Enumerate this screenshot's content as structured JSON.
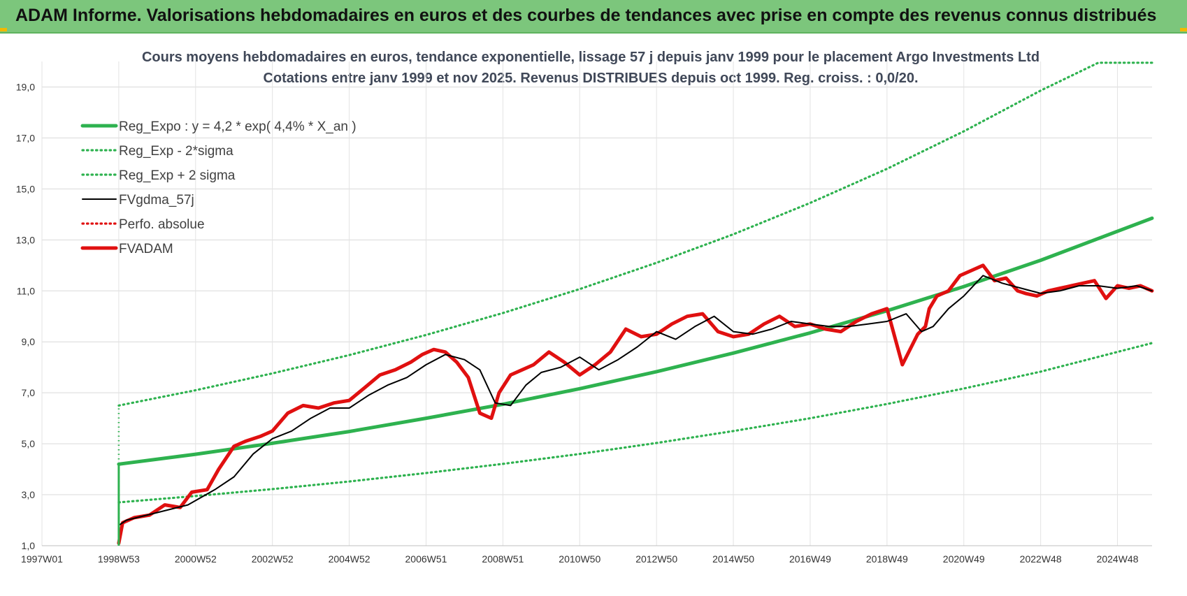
{
  "header": {
    "banner": "ADAM Informe. Valorisations hebdomadaires en euros et des courbes de tendances avec prise en compte des revenus connus distribués"
  },
  "chart_data": {
    "type": "line",
    "title": "Cours moyens hebdomadaires en euros, tendance exponentielle, lissage 57 j depuis janv 1999 pour le placement Argo Investments Ltd",
    "subtitle": "Cotations entre janv 1999 et nov 2025. Revenus DISTRIBUES depuis oct 1999. Reg. croiss. : 0,0/20.",
    "xlabel": "",
    "ylabel": "",
    "x_tick_labels": [
      "1997W01",
      "1998W53",
      "2000W52",
      "2002W52",
      "2004W52",
      "2006W51",
      "2008W51",
      "2010W50",
      "2012W50",
      "2014W50",
      "2016W49",
      "2018W49",
      "2020W49",
      "2022W48",
      "2024W48"
    ],
    "y_tick_labels": [
      "1,0",
      "3,0",
      "5,0",
      "7,0",
      "9,0",
      "11,0",
      "13,0",
      "15,0",
      "17,0",
      "19,0"
    ],
    "xlim": [
      1997.0,
      2025.9
    ],
    "ylim": [
      1.0,
      20.0
    ],
    "grid": true,
    "legend_position": "top-left",
    "series": [
      {
        "name": "Reg_Expo : y = 4,2 * exp( 4,4% *  X_an )",
        "color": "#2eb24f",
        "style": "solid-thick",
        "x": [
          1999.0,
          2001,
          2003,
          2005,
          2007,
          2009,
          2011,
          2013,
          2015,
          2017,
          2019,
          2021,
          2023,
          2025.9
        ],
        "y": [
          4.2,
          4.59,
          5.02,
          5.48,
          6.0,
          6.55,
          7.16,
          7.83,
          8.56,
          9.35,
          10.22,
          11.17,
          12.2,
          13.85
        ]
      },
      {
        "name": "Reg_Exp - 2*sigma",
        "color": "#2eb24f",
        "style": "dotted",
        "x": [
          1999.0,
          2001,
          2003,
          2005,
          2007,
          2009,
          2011,
          2013,
          2015,
          2017,
          2019,
          2021,
          2023,
          2025.9
        ],
        "y": [
          2.7,
          2.95,
          3.22,
          3.52,
          3.85,
          4.21,
          4.6,
          5.03,
          5.5,
          6.0,
          6.56,
          7.17,
          7.83,
          8.95
        ]
      },
      {
        "name": "Reg_Exp + 2 sigma",
        "color": "#2eb24f",
        "style": "dotted",
        "x": [
          1999.0,
          2001,
          2003,
          2005,
          2007,
          2009,
          2011,
          2013,
          2015,
          2017,
          2019,
          2021,
          2023,
          2024.5,
          2025.9
        ],
        "y": [
          6.5,
          7.1,
          7.76,
          8.48,
          9.27,
          10.13,
          11.07,
          12.1,
          13.22,
          14.45,
          15.79,
          17.26,
          18.86,
          19.95,
          19.95
        ]
      },
      {
        "name": "FVgdma_57j",
        "color": "#000000",
        "style": "solid",
        "x": [
          1999.0,
          1999.2,
          2000.0,
          2000.8,
          2001.5,
          2002.0,
          2002.5,
          2003.0,
          2003.5,
          2004.0,
          2004.5,
          2005.0,
          2005.5,
          2006.0,
          2006.5,
          2007.0,
          2007.5,
          2008.0,
          2008.4,
          2008.8,
          2009.2,
          2009.6,
          2010.0,
          2010.5,
          2011.0,
          2011.5,
          2012.0,
          2012.5,
          2013.0,
          2013.5,
          2014.0,
          2014.5,
          2015.0,
          2015.5,
          2016.0,
          2016.5,
          2017.0,
          2017.5,
          2018.0,
          2018.5,
          2019.0,
          2019.5,
          2019.9,
          2020.2,
          2020.6,
          2021.0,
          2021.5,
          2022.0,
          2022.5,
          2023.0,
          2023.5,
          2024.0,
          2024.5,
          2025.0,
          2025.5,
          2025.9
        ],
        "y": [
          1.8,
          2.0,
          2.3,
          2.6,
          3.2,
          3.7,
          4.6,
          5.2,
          5.5,
          6.0,
          6.4,
          6.4,
          6.9,
          7.3,
          7.6,
          8.1,
          8.5,
          8.3,
          7.9,
          6.6,
          6.5,
          7.3,
          7.8,
          8.0,
          8.4,
          7.9,
          8.3,
          8.8,
          9.4,
          9.1,
          9.6,
          10.0,
          9.4,
          9.3,
          9.5,
          9.8,
          9.7,
          9.6,
          9.6,
          9.7,
          9.8,
          10.1,
          9.4,
          9.6,
          10.3,
          10.8,
          11.6,
          11.3,
          11.1,
          10.9,
          11.0,
          11.2,
          11.2,
          11.1,
          11.2,
          11.0
        ]
      },
      {
        "name": "Perfo. absolue",
        "color": "#e01010",
        "style": "dotted",
        "x": [],
        "y": []
      },
      {
        "name": "FVADAM",
        "color": "#e01010",
        "style": "solid-thick",
        "x": [
          1999.0,
          1999.1,
          1999.4,
          1999.8,
          2000.2,
          2000.6,
          2000.9,
          2001.3,
          2001.6,
          2002.0,
          2002.3,
          2002.7,
          2003.0,
          2003.4,
          2003.8,
          2004.2,
          2004.6,
          2005.0,
          2005.4,
          2005.8,
          2006.2,
          2006.6,
          2006.9,
          2007.2,
          2007.5,
          2007.8,
          2008.1,
          2008.4,
          2008.7,
          2008.9,
          2009.2,
          2009.5,
          2009.8,
          2010.2,
          2010.6,
          2011.0,
          2011.4,
          2011.8,
          2012.2,
          2012.6,
          2013.0,
          2013.4,
          2013.8,
          2014.2,
          2014.6,
          2015.0,
          2015.4,
          2015.8,
          2016.2,
          2016.6,
          2017.0,
          2017.4,
          2017.8,
          2018.2,
          2018.6,
          2019.0,
          2019.4,
          2019.8,
          2020.0,
          2020.1,
          2020.3,
          2020.6,
          2020.9,
          2021.2,
          2021.5,
          2021.8,
          2022.1,
          2022.4,
          2022.6,
          2022.9,
          2023.2,
          2023.5,
          2023.8,
          2024.1,
          2024.4,
          2024.7,
          2025.0,
          2025.3,
          2025.6,
          2025.9
        ],
        "y": [
          1.1,
          1.9,
          2.1,
          2.2,
          2.6,
          2.5,
          3.1,
          3.2,
          4.0,
          4.9,
          5.1,
          5.3,
          5.5,
          6.2,
          6.5,
          6.4,
          6.6,
          6.7,
          7.2,
          7.7,
          7.9,
          8.2,
          8.5,
          8.7,
          8.6,
          8.2,
          7.6,
          6.2,
          6.0,
          7.0,
          7.7,
          7.9,
          8.1,
          8.6,
          8.2,
          7.7,
          8.1,
          8.6,
          9.5,
          9.2,
          9.3,
          9.7,
          10.0,
          10.1,
          9.4,
          9.2,
          9.3,
          9.7,
          10.0,
          9.6,
          9.7,
          9.5,
          9.4,
          9.8,
          10.1,
          10.3,
          8.1,
          9.3,
          9.6,
          10.3,
          10.8,
          11.0,
          11.6,
          11.8,
          12.0,
          11.4,
          11.5,
          11.0,
          10.9,
          10.8,
          11.0,
          11.1,
          11.2,
          11.3,
          11.4,
          10.7,
          11.2,
          11.1,
          11.2,
          11.0
        ]
      }
    ]
  }
}
